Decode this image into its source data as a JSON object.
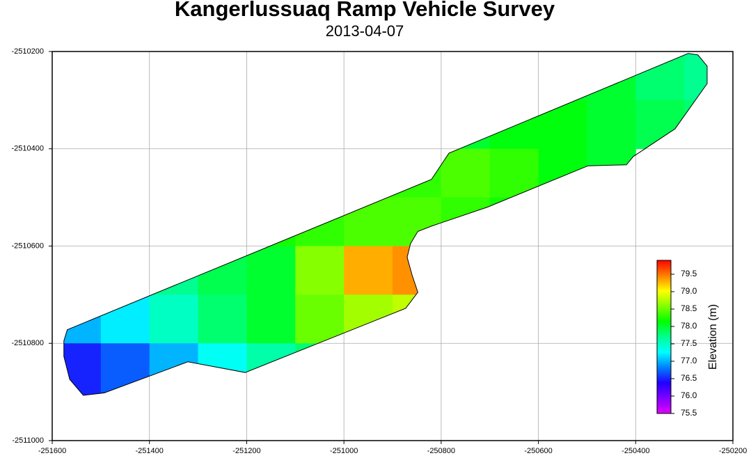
{
  "chart_data": {
    "type": "heatmap",
    "title": "Kangerlussuaq Ramp Vehicle Survey",
    "subtitle": "2013-04-07",
    "xlim": [
      -251600,
      -250200
    ],
    "ylim": [
      -2511000,
      -2510200
    ],
    "xticks": [
      -251600,
      -251400,
      -251200,
      -251000,
      -250800,
      -250600,
      -250400,
      -250200
    ],
    "yticks": [
      -2510200,
      -2510400,
      -2510600,
      -2510800,
      -2511000
    ],
    "grid": true,
    "x": [
      -251550,
      -251450,
      -251350,
      -251250,
      -251150,
      -251050,
      -250950,
      -250850,
      -250750,
      -250650,
      -250550,
      -250450,
      -250350,
      -250250
    ],
    "y": [
      -2510250,
      -2510350,
      -2510450,
      -2510550,
      -2510650,
      -2510750,
      -2510850,
      -2510950
    ],
    "z": [
      [
        null,
        null,
        null,
        null,
        null,
        null,
        null,
        null,
        null,
        null,
        78.0,
        78.0,
        77.8,
        77.7
      ],
      [
        null,
        null,
        null,
        null,
        null,
        null,
        null,
        null,
        78.0,
        78.1,
        78.1,
        78.0,
        77.9,
        77.8
      ],
      [
        null,
        null,
        null,
        null,
        null,
        null,
        78.3,
        78.3,
        78.4,
        78.3,
        78.1,
        78.0,
        null,
        null
      ],
      [
        null,
        null,
        null,
        null,
        78.2,
        78.3,
        78.4,
        78.4,
        78.3,
        78.2,
        null,
        null,
        null,
        null
      ],
      [
        null,
        null,
        77.7,
        77.9,
        78.0,
        78.6,
        79.3,
        79.4,
        null,
        null,
        null,
        null,
        null,
        null
      ],
      [
        77.0,
        77.2,
        77.5,
        77.8,
        78.0,
        78.5,
        78.7,
        78.8,
        null,
        null,
        null,
        null,
        null,
        null
      ],
      [
        76.5,
        76.7,
        77.0,
        77.3,
        77.6,
        77.8,
        null,
        null,
        null,
        null,
        null,
        null,
        null,
        null
      ],
      [
        76.5,
        76.6,
        null,
        null,
        null,
        null,
        null,
        null,
        null,
        null,
        null,
        null,
        null,
        null
      ]
    ],
    "outline": {
      "x": [
        -251569,
        -250820,
        -250784,
        -250292,
        -250272,
        -250253,
        -250253,
        -250319,
        -250405,
        -250419,
        -250498,
        -250705,
        -250820,
        -250848,
        -250863,
        -250870,
        -250860,
        -250848,
        -250873,
        -251203,
        -251321,
        -251493,
        -251536,
        -251564,
        -251576,
        -251576
      ],
      "y": [
        -2510772,
        -2510463,
        -2510409,
        -2510204,
        -2510207,
        -2510230,
        -2510266,
        -2510359,
        -2510416,
        -2510433,
        -2510435,
        -2510520,
        -2510559,
        -2510570,
        -2510595,
        -2510623,
        -2510659,
        -2510695,
        -2510728,
        -2510860,
        -2510838,
        -2510902,
        -2510907,
        -2510874,
        -2510827,
        -2510795
      ]
    },
    "colorbar": {
      "label": "Elevation (m)",
      "clim": [
        75.5,
        79.9
      ],
      "ticks": [
        75.5,
        76.0,
        76.5,
        77.0,
        77.5,
        78.0,
        78.5,
        79.0,
        79.5
      ],
      "tick_labels": [
        "75.5",
        "76.0",
        "76.5",
        "77.0",
        "77.5",
        "78.0",
        "78.5",
        "79.0",
        "79.5"
      ],
      "colors": [
        "#e000ff",
        "#8000ff",
        "#2000ff",
        "#0080ff",
        "#00ffff",
        "#00ff90",
        "#00ff00",
        "#80ff00",
        "#ffff00",
        "#ff8000",
        "#ff0000"
      ]
    }
  }
}
